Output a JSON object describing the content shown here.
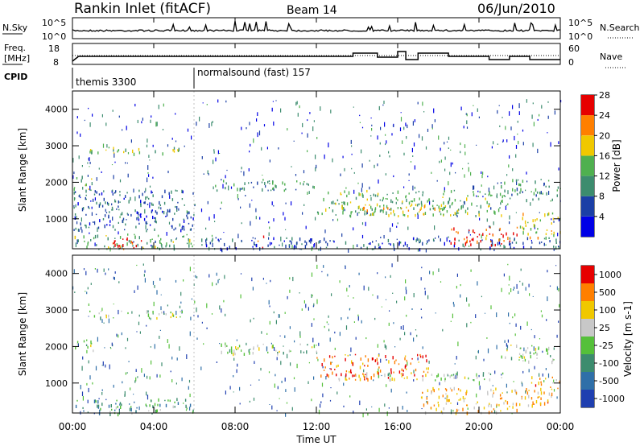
{
  "header": {
    "station": "Rankin Inlet (fitACF)",
    "beam": "Beam 14",
    "date": "06/Jun/2010"
  },
  "top_panels": {
    "nsky_label": "N.Sky",
    "nsky_ticks_left": [
      "10^5",
      "10^0"
    ],
    "nsearch_label": "N.Search",
    "nsearch_ticks_right": [
      "10^5",
      "10^0"
    ],
    "freq_label_1": "Freq.",
    "freq_label_2": "[MHz]",
    "freq_ticks_left": [
      "18",
      "8"
    ],
    "nave_label": "Nave",
    "nave_ticks_right": [
      "60",
      "0"
    ],
    "cpid_label": "CPID",
    "cpid_segments": [
      "themis 3300",
      "normalsound (fast) 157"
    ]
  },
  "chart_data": [
    {
      "type": "heatmap",
      "name": "power",
      "ylabel": "Slant Range [km]",
      "xlabel": "",
      "x_range_hours": [
        0,
        24
      ],
      "ylim": [
        180,
        4500
      ],
      "y_ticks": [
        1000,
        2000,
        3000,
        4000
      ],
      "colorbar": {
        "label": "Power [dB]",
        "ticks": [
          4,
          8,
          12,
          16,
          20,
          24,
          28
        ],
        "colors": [
          "#0000e6",
          "#1b3fa6",
          "#3c8c6e",
          "#4fb04f",
          "#f0c800",
          "#ff7f00",
          "#e60000"
        ]
      },
      "bands": [
        {
          "t0": 0.0,
          "t1": 6.0,
          "r0": 180,
          "r1": 600,
          "level": 0.45
        },
        {
          "t0": 1.5,
          "t1": 3.5,
          "r0": 180,
          "r1": 500,
          "level": 0.95
        },
        {
          "t0": 0.0,
          "t1": 1.0,
          "r0": 1800,
          "r1": 2200,
          "level": 0.5
        },
        {
          "t0": 0.8,
          "t1": 5.5,
          "r0": 2800,
          "r1": 3000,
          "level": 0.5
        },
        {
          "t0": 0.0,
          "t1": 6.0,
          "r0": 700,
          "r1": 1800,
          "level": 0.25
        },
        {
          "t0": 6.0,
          "t1": 24.0,
          "r0": 180,
          "r1": 500,
          "level": 0.25
        },
        {
          "t0": 9.1,
          "t1": 9.4,
          "r0": 180,
          "r1": 600,
          "level": 0.9
        },
        {
          "t0": 7.0,
          "t1": 12.0,
          "r0": 1800,
          "r1": 2100,
          "level": 0.4
        },
        {
          "t0": 12.0,
          "t1": 21.5,
          "r0": 1100,
          "r1": 1800,
          "level": 0.45
        },
        {
          "t0": 14.0,
          "t1": 18.5,
          "r0": 1100,
          "r1": 1400,
          "level": 0.65
        },
        {
          "t0": 18.5,
          "t1": 22.0,
          "r0": 300,
          "r1": 800,
          "level": 0.85
        },
        {
          "t0": 22.0,
          "t1": 24.0,
          "r0": 500,
          "r1": 1200,
          "level": 0.6
        },
        {
          "t0": 21.0,
          "t1": 24.0,
          "r0": 1500,
          "r1": 2100,
          "level": 0.4
        }
      ]
    },
    {
      "type": "heatmap",
      "name": "velocity",
      "ylabel": "Slant Range [km]",
      "xlabel": "Time UT",
      "x_range_hours": [
        0,
        24
      ],
      "x_ticks": [
        "00:00",
        "04:00",
        "08:00",
        "12:00",
        "16:00",
        "20:00",
        "00:00"
      ],
      "ylim": [
        180,
        4500
      ],
      "y_ticks": [
        1000,
        2000,
        3000,
        4000
      ],
      "colorbar": {
        "label": "Velocity [m s-1]",
        "ticks": [
          "1000",
          "500",
          "100",
          "25",
          "-25",
          "-100",
          "-500",
          "-1000"
        ],
        "colors": [
          "#1f3fb0",
          "#2f6fa8",
          "#3c8c6e",
          "#55c03a",
          "#c8c8c8",
          "#f0c800",
          "#ff7f00",
          "#e60000"
        ]
      },
      "bands": [
        {
          "t0": 0.0,
          "t1": 6.0,
          "r0": 180,
          "r1": 600,
          "level": 0.35
        },
        {
          "t0": 0.0,
          "t1": 1.0,
          "r0": 1800,
          "r1": 2200,
          "level": 0.5
        },
        {
          "t0": 0.8,
          "t1": 5.5,
          "r0": 2800,
          "r1": 3000,
          "level": 0.5
        },
        {
          "t0": 7.0,
          "t1": 12.0,
          "r0": 1800,
          "r1": 2100,
          "level": 0.5
        },
        {
          "t0": 12.0,
          "t1": 17.5,
          "r0": 1100,
          "r1": 1800,
          "level": 0.85
        },
        {
          "t0": 13.0,
          "t1": 21.5,
          "r0": 1100,
          "r1": 1300,
          "level": 0.5
        },
        {
          "t0": 17.0,
          "t1": 22.0,
          "r0": 200,
          "r1": 900,
          "level": 0.7
        },
        {
          "t0": 22.0,
          "t1": 24.0,
          "r0": 400,
          "r1": 1200,
          "level": 0.75
        },
        {
          "t0": 21.0,
          "t1": 24.0,
          "r0": 1600,
          "r1": 2100,
          "level": 0.5
        }
      ]
    }
  ]
}
